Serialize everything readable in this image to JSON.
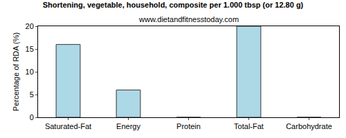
{
  "chart_data": {
    "type": "bar",
    "title": "Shortening, vegetable, household, composite per 1.000 tbsp (or 12.80 g)",
    "subtitle": "www.dietandfitnesstoday.com",
    "ylabel": "Percentage of RDA (%)",
    "categories": [
      "Saturated-Fat",
      "Energy",
      "Protein",
      "Total-Fat",
      "Carbohydrate"
    ],
    "values": [
      16,
      6,
      0,
      20,
      0
    ],
    "color": "#add8e6",
    "ylim": [
      0,
      20
    ],
    "yticks": [
      0,
      5,
      10,
      15,
      20
    ],
    "grid": false
  }
}
